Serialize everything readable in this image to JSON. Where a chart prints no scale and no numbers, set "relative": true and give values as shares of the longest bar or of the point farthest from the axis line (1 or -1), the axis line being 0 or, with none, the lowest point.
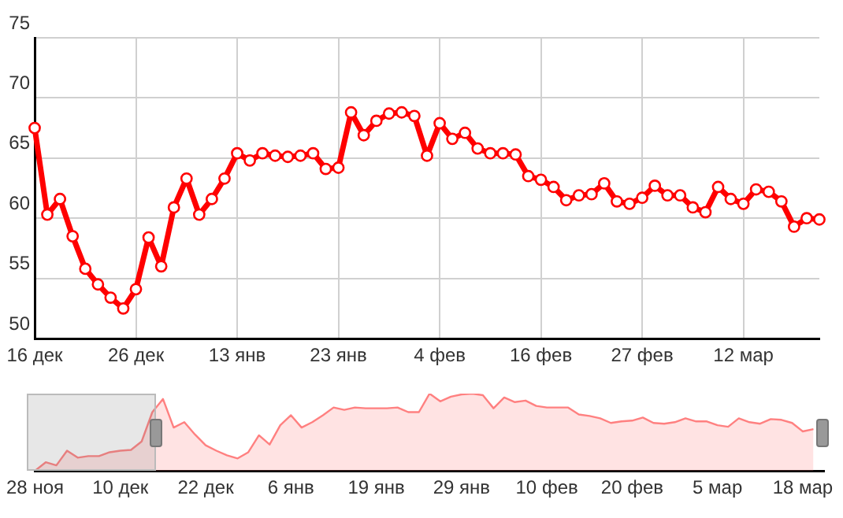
{
  "chart_data": [
    {
      "type": "line",
      "categories": [
        "16 дек",
        null,
        null,
        null,
        null,
        null,
        null,
        null,
        "26 дек",
        null,
        null,
        null,
        null,
        null,
        null,
        null,
        "13 янв",
        null,
        null,
        null,
        null,
        null,
        null,
        null,
        "23 янв",
        null,
        null,
        null,
        null,
        null,
        null,
        null,
        "4 фев",
        null,
        null,
        null,
        null,
        null,
        null,
        null,
        "16 фев",
        null,
        null,
        null,
        null,
        null,
        null,
        null,
        "27 фев",
        null,
        null,
        null,
        null,
        null,
        null,
        null,
        "12 мар",
        null,
        null,
        null,
        null,
        null,
        null
      ],
      "series": [
        {
          "color": "#ff0000",
          "values": [
            67.5,
            60.3,
            61.6,
            58.5,
            55.8,
            54.5,
            53.4,
            52.5,
            54.1,
            58.4,
            56.0,
            60.9,
            63.3,
            60.3,
            61.6,
            63.3,
            65.4,
            64.8,
            65.4,
            65.2,
            65.1,
            65.2,
            65.4,
            64.1,
            64.2,
            68.8,
            66.9,
            68.1,
            68.7,
            68.8,
            68.5,
            65.2,
            67.9,
            66.6,
            67.1,
            65.8,
            65.4,
            65.4,
            65.3,
            63.5,
            63.2,
            62.6,
            61.5,
            61.9,
            62.0,
            62.9,
            61.4,
            61.2,
            61.7,
            62.7,
            61.9,
            61.9,
            60.9,
            60.5,
            62.6,
            61.6,
            61.2,
            62.4,
            62.2,
            61.4,
            59.3,
            60.0,
            59.9
          ]
        }
      ],
      "ylim": [
        50,
        75
      ],
      "yticks": [
        50,
        55,
        60,
        65,
        70,
        75
      ],
      "grid": true,
      "marker": "circle"
    },
    {
      "type": "area",
      "relative": true,
      "categories": [
        "28 ноя",
        null,
        null,
        null,
        null,
        null,
        null,
        null,
        "10 дек",
        null,
        null,
        null,
        null,
        null,
        null,
        null,
        "22 дек",
        null,
        null,
        null,
        null,
        null,
        null,
        null,
        "6 янв",
        null,
        null,
        null,
        null,
        null,
        null,
        null,
        "19 янв",
        null,
        null,
        null,
        null,
        null,
        null,
        null,
        "29 янв",
        null,
        null,
        null,
        null,
        null,
        null,
        null,
        "10 фев",
        null,
        null,
        null,
        null,
        null,
        null,
        null,
        "20 фев",
        null,
        null,
        null,
        null,
        null,
        null,
        null,
        "5 мар",
        null,
        null,
        null,
        null,
        null,
        null,
        null,
        "18 мар",
        null,
        null
      ],
      "series": [
        {
          "color": "#ff8080",
          "values": [
            0,
            0.11,
            0.07,
            0.26,
            0.17,
            0.19,
            0.19,
            0.24,
            0.26,
            0.27,
            0.38,
            0.76,
            0.93,
            0.56,
            0.63,
            0.47,
            0.33,
            0.26,
            0.2,
            0.16,
            0.24,
            0.46,
            0.34,
            0.59,
            0.72,
            0.56,
            0.63,
            0.72,
            0.82,
            0.79,
            0.82,
            0.81,
            0.81,
            0.81,
            0.82,
            0.76,
            0.76,
            1,
            0.9,
            0.96,
            0.99,
            1,
            0.98,
            0.81,
            0.95,
            0.89,
            0.91,
            0.84,
            0.82,
            0.82,
            0.82,
            0.73,
            0.71,
            0.68,
            0.62,
            0.64,
            0.65,
            0.69,
            0.62,
            0.61,
            0.63,
            0.68,
            0.64,
            0.64,
            0.59,
            0.57,
            0.68,
            0.63,
            0.61,
            0.67,
            0.66,
            0.62,
            0.51,
            0.54,
            null
          ]
        }
      ],
      "grid": false
    }
  ]
}
